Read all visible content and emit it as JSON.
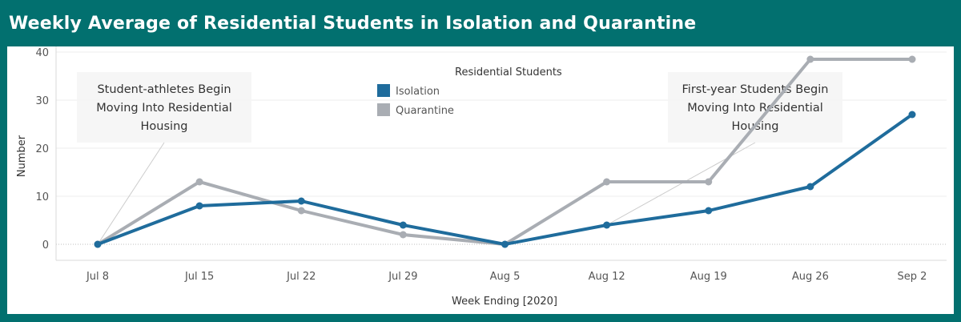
{
  "chart_data": {
    "type": "line",
    "title": "Weekly Average of Residential Students in Isolation and Quarantine",
    "xlabel": "Week Ending [2020]",
    "ylabel": "Number",
    "categories": [
      "Jul 8",
      "Jul 15",
      "Jul 22",
      "Jul 29",
      "Aug 5",
      "Aug 12",
      "Aug 19",
      "Aug 26",
      "Sep 2"
    ],
    "ylim": [
      0,
      40
    ],
    "yticks": [
      0,
      10,
      20,
      30,
      40
    ],
    "grid": true,
    "legend": {
      "title": "Residential Students",
      "placement": "top-center"
    },
    "series": [
      {
        "name": "Isolation",
        "color": "#1f6c9c",
        "values": [
          0,
          8,
          9,
          4,
          0,
          4,
          7,
          12,
          27
        ]
      },
      {
        "name": "Quarantine",
        "color": "#a9adb3",
        "values": [
          0,
          13,
          7,
          2,
          0,
          13,
          13,
          38.5,
          38.5
        ]
      }
    ],
    "annotations": [
      {
        "lines": [
          "Student-athletes Begin",
          "Moving Into Residential",
          "Housing"
        ],
        "target": {
          "category": "Jul 8",
          "value": 0
        }
      },
      {
        "lines": [
          "First-year Students Begin",
          "Moving Into Residential",
          "Housing"
        ],
        "target": {
          "category": "Aug 12",
          "value": 4
        }
      }
    ]
  }
}
